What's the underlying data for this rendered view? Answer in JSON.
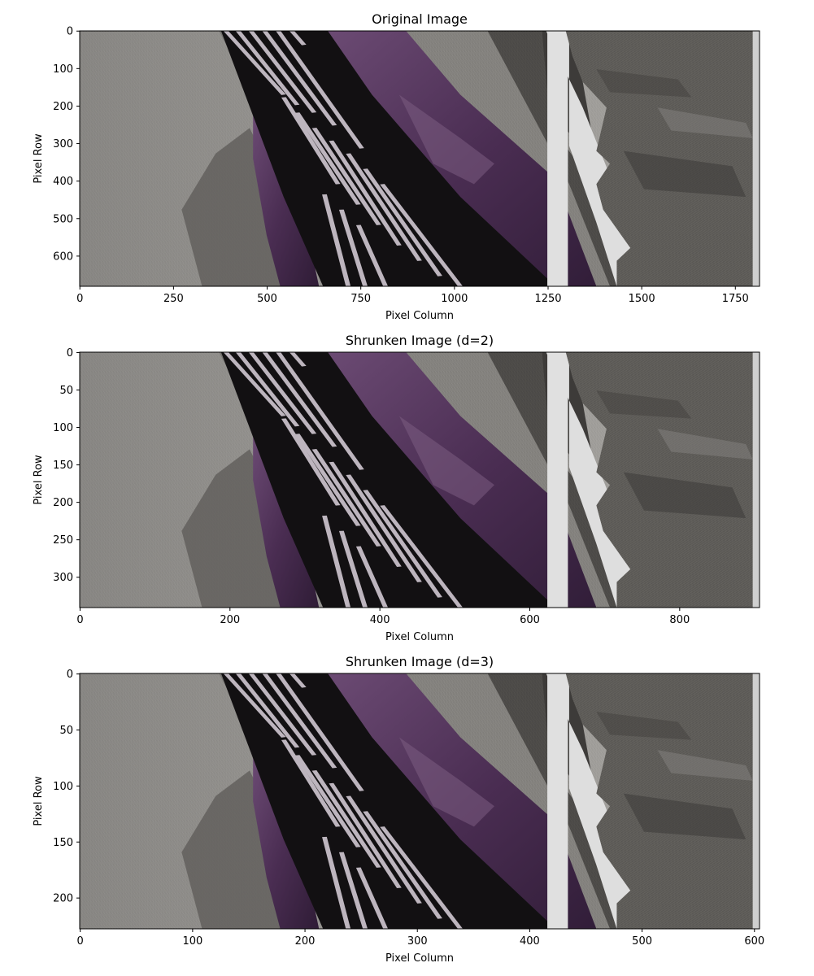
{
  "chart_data": [
    {
      "type": "image",
      "title": "Original Image",
      "xlabel": "Pixel Column",
      "ylabel": "Pixel Row",
      "xlim": [
        -0.5,
        1814.5
      ],
      "ylim": [
        680.5,
        -0.5
      ],
      "xticks": [
        0,
        250,
        500,
        750,
        1000,
        1250,
        1500,
        1750
      ],
      "yticks": [
        0,
        100,
        200,
        300,
        400,
        500,
        600
      ]
    },
    {
      "type": "image",
      "title": "Shrunken Image (d=2)",
      "xlabel": "Pixel Column",
      "ylabel": "Pixel Row",
      "xlim": [
        -0.5,
        906.5
      ],
      "ylim": [
        340.5,
        -0.5
      ],
      "xticks": [
        0,
        200,
        400,
        600,
        800
      ],
      "yticks": [
        0,
        50,
        100,
        150,
        200,
        250,
        300
      ]
    },
    {
      "type": "image",
      "title": "Shrunken Image (d=3)",
      "xlabel": "Pixel Column",
      "ylabel": "Pixel Row",
      "xlim": [
        -0.5,
        604.5
      ],
      "ylim": [
        227.5,
        -0.5
      ],
      "xticks": [
        0,
        100,
        200,
        300,
        400,
        500,
        600
      ],
      "yticks": [
        0,
        50,
        100,
        150,
        200
      ]
    }
  ],
  "colors": {
    "background": "#ffffff",
    "axis": "#000000",
    "light_fabric": "#a8a6a2",
    "dark_fabric": "#4a4846",
    "tie_black": "#121012",
    "tie_stripe": "#b8b0b8",
    "shirt_purple": "#5a3a60",
    "backdrop": "#dcdcdc",
    "right_suit": "#5e5c58"
  }
}
